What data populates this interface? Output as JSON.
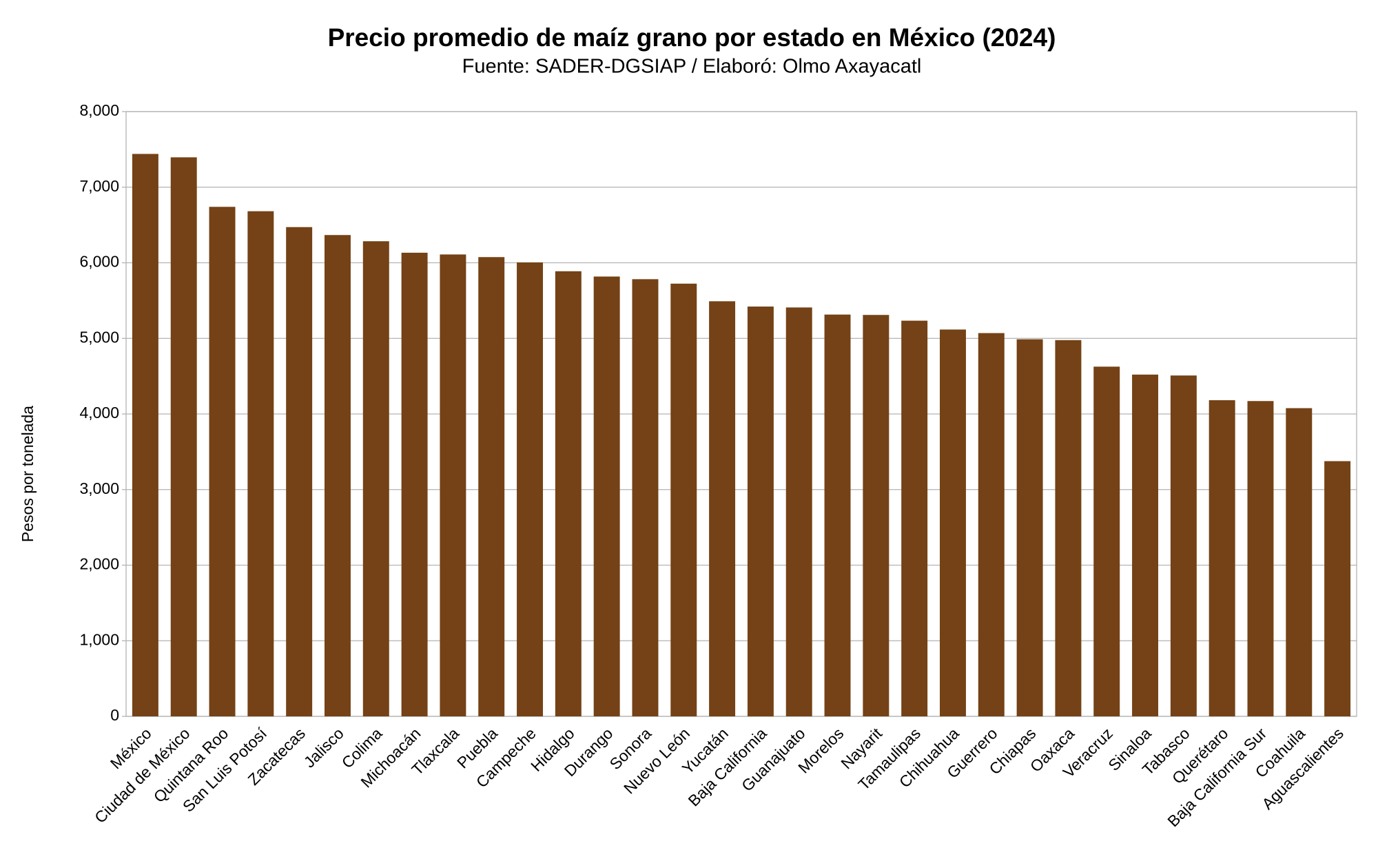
{
  "chart_data": {
    "type": "bar",
    "title": "Precio promedio de maíz grano por estado en México (2024)",
    "subtitle": "Fuente: SADER-DGSIAP / Elaboró: Olmo Axayacatl",
    "y_label": "Pesos por tonelada",
    "categories": [
      "México",
      "Ciudad de México",
      "Quintana Roo",
      "San Luis Potosí",
      "Zacatecas",
      "Jalisco",
      "Colima",
      "Michoacán",
      "Tlaxcala",
      "Puebla",
      "Campeche",
      "Hidalgo",
      "Durango",
      "Sonora",
      "Nuevo León",
      "Yucatán",
      "Baja California",
      "Guanajuato",
      "Morelos",
      "Nayarit",
      "Tamaulipas",
      "Chihuahua",
      "Guerrero",
      "Chiapas",
      "Oaxaca",
      "Veracruz",
      "Sinaloa",
      "Tabasco",
      "Querétaro",
      "Baja California Sur",
      "Coahuila",
      "Aguascalientes"
    ],
    "values": [
      7440,
      7395,
      6740,
      6682,
      6472,
      6367,
      6285,
      6133,
      6110,
      6075,
      6005,
      5888,
      5818,
      5783,
      5724,
      5491,
      5421,
      5409,
      5315,
      5310,
      5234,
      5117,
      5070,
      4988,
      4977,
      4626,
      4521,
      4509,
      4182,
      4171,
      4077,
      3376
    ],
    "color": "#744216",
    "ylim": [
      0,
      8000
    ],
    "yticks": [
      0,
      {
        "value": 1000,
        "label": "1,000"
      },
      {
        "value": 2000,
        "label": "2,000"
      },
      {
        "value": 3000,
        "label": "3,000"
      },
      {
        "value": 4000,
        "label": "4,000"
      },
      {
        "value": 5000,
        "label": "5,000"
      },
      {
        "value": 6000,
        "label": "6,000"
      },
      {
        "value": 7000,
        "label": "7,000"
      },
      {
        "value": 8000,
        "label": "8,000"
      }
    ],
    "grid": true
  }
}
